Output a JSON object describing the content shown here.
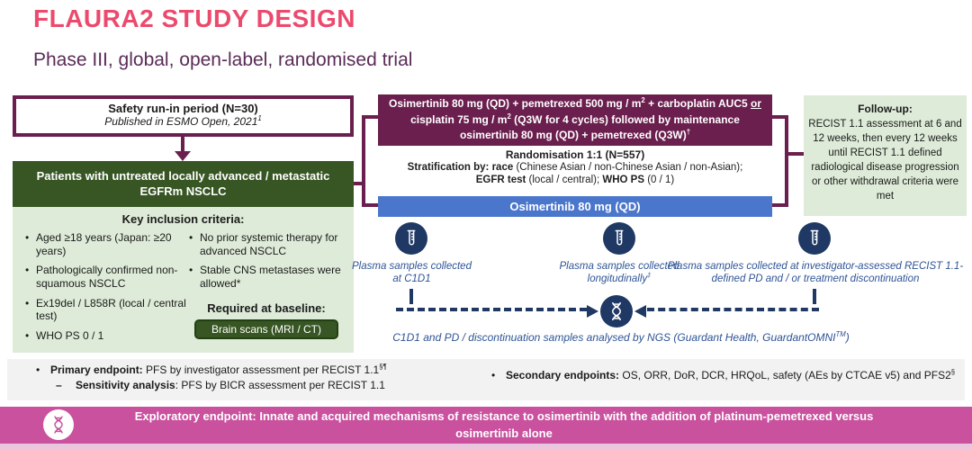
{
  "colors": {
    "title_pink": "#EC4A6D",
    "deep_purple": "#6B1F4E",
    "subtitle_purple": "#5A2B57",
    "dark_green": "#375623",
    "light_green": "#DEEBD8",
    "arm_blue": "#4A76CB",
    "navy_icon": "#1F3864",
    "sample_text_blue": "#2E5496",
    "banner_pink": "#C9519E",
    "band_gray": "#F2F2F2"
  },
  "header": {
    "title": "FLAURA2 STUDY DESIGN",
    "subtitle": "Phase III, global, open-label, randomised trial"
  },
  "safety_box": {
    "title": "Safety run-in period (N=30)",
    "subtitle_segments": [
      {
        "t": "Published in ESMO Open, 2021"
      },
      {
        "t": "1",
        "sup": true
      }
    ]
  },
  "patients_box": {
    "text": "Patients with untreated locally advanced / metastatic EGFRm NSCLC"
  },
  "inclusion": {
    "header": "Key inclusion criteria:",
    "left_bullets": [
      "Aged ≥18 years (Japan: ≥20 years)",
      "Pathologically confirmed non-squamous NSCLC",
      "Ex19del / L858R (local / central test)",
      "WHO PS 0 / 1"
    ],
    "right_bullets": [
      "No prior systemic therapy for advanced NSCLC",
      "Stable CNS metastases were allowed*"
    ],
    "baseline_label": "Required at baseline:",
    "baseline_button": "Brain scans (MRI / CT)"
  },
  "chemo_arm": {
    "segments": [
      {
        "t": "Osimertinib 80 mg (QD) + pemetrexed 500 mg / m"
      },
      {
        "t": "2",
        "sup": true
      },
      {
        "t": " + carboplatin AUC5 "
      },
      {
        "t": "or",
        "u": true
      },
      {
        "t": " cisplatin 75 mg / m"
      },
      {
        "t": "2",
        "sup": true
      },
      {
        "t": " (Q3W for 4 cycles) followed by maintenance osimertinib 80 mg (QD) + pemetrexed (Q3W)"
      },
      {
        "t": "†",
        "sup": true
      }
    ]
  },
  "randomisation": {
    "line1": "Randomisation 1:1 (N=557)",
    "line2_segments": [
      {
        "t": "Stratification by: race ",
        "b": true
      },
      {
        "t": "(Chinese Asian / non-Chinese Asian / non-Asian);"
      }
    ],
    "line3_segments": [
      {
        "t": "EGFR test ",
        "b": true
      },
      {
        "t": "(local / central); "
      },
      {
        "t": "WHO PS ",
        "b": true
      },
      {
        "t": "(0 / 1)"
      }
    ]
  },
  "osi_arm": {
    "text": "Osimertinib 80 mg (QD)"
  },
  "followup": {
    "title": "Follow-up:",
    "body": "RECIST 1.1 assessment at 6 and 12 weeks, then every 12 weeks until RECIST 1.1 defined radiological disease progression or other withdrawal criteria were met"
  },
  "plasma": {
    "label1": "Plasma samples collected at C1D1",
    "label2_segments": [
      {
        "t": "Plasma samples collected longitudinally"
      },
      {
        "t": "‡",
        "sup": true
      }
    ],
    "label3": "Plasma samples collected at investigator-assessed RECIST 1.1-defined PD and / or treatment discontinuation",
    "ngs_caption_segments": [
      {
        "t": "C1D1 and PD / discontinuation samples analysed by NGS (Guardant Health, GuardantOMNI"
      },
      {
        "t": "TM",
        "sup": true
      },
      {
        "t": ")"
      }
    ]
  },
  "endpoints": {
    "primary_segments": [
      {
        "t": "Primary endpoint: ",
        "b": true
      },
      {
        "t": "PFS by investigator assessment per RECIST 1.1"
      },
      {
        "t": "§¶",
        "sup": true
      }
    ],
    "sensitivity_segments": [
      {
        "t": "Sensitivity analysis",
        "b": true
      },
      {
        "t": ": PFS by BICR assessment per RECIST 1.1"
      }
    ],
    "secondary_segments": [
      {
        "t": "Secondary endpoints: ",
        "b": true
      },
      {
        "t": "OS, ORR, DoR, DCR, HRQoL, safety (AEs by CTCAE v5) and PFS2"
      },
      {
        "t": "§",
        "sup": true
      }
    ]
  },
  "banner": {
    "text": "Exploratory endpoint: Innate and acquired mechanisms of resistance to osimertinib with the addition of platinum-pemetrexed versus osimertinib alone"
  },
  "icons": {
    "plasma": "test-tube-icon",
    "ngs": "dna-icon",
    "banner": "dna-icon"
  }
}
